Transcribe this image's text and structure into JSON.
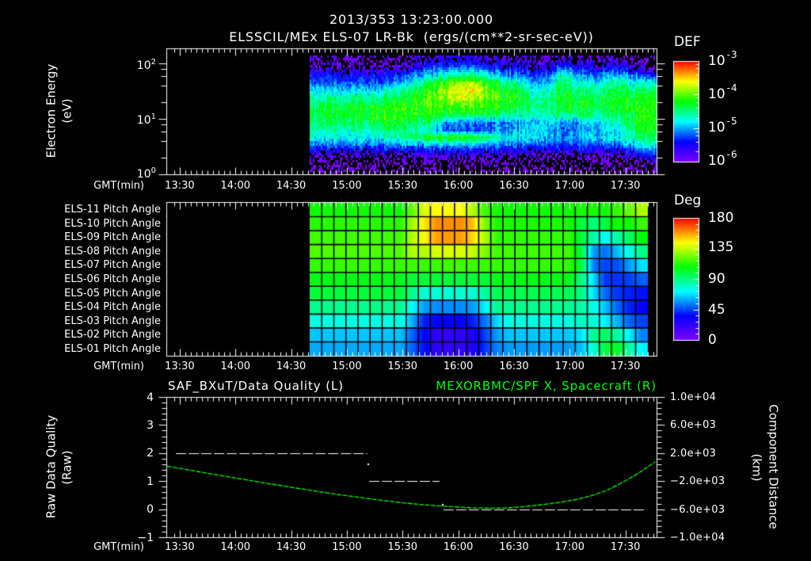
{
  "header": {
    "timestamp": "2013/353 13:23:00.000",
    "title": "ELSSCIL/MEx ELS-07 LR-Bk  (ergs/(cm**2-sr-sec-eV))"
  },
  "time_axis": {
    "label": "GMT(min)",
    "xlim": [
      "13:23",
      "17:47"
    ],
    "ticks": [
      "13:30",
      "14:00",
      "14:30",
      "15:00",
      "15:30",
      "16:00",
      "16:30",
      "17:00",
      "17:30"
    ]
  },
  "colors": {
    "background": "#000000",
    "foreground": "#ffffff",
    "pitch_grid": "#000000",
    "right_axis_series": "#00ff00"
  },
  "colormap": {
    "stops": [
      [
        0,
        "#7f00ff"
      ],
      [
        0.2,
        "#0000ff"
      ],
      [
        0.3,
        "#0080ff"
      ],
      [
        0.4,
        "#00ffff"
      ],
      [
        0.5,
        "#00ff80"
      ],
      [
        0.6,
        "#00ff00"
      ],
      [
        0.8,
        "#ffff00"
      ],
      [
        0.9,
        "#ff8000"
      ],
      [
        1,
        "#ff0000"
      ]
    ]
  },
  "chart_data": [
    {
      "type": "heatmap",
      "title": "ELSSCIL/MEx ELS-07 LR-Bk  (ergs/(cm**2-sr-sec-eV))",
      "subtitle": "2013/353 13:23:00.000",
      "xlabel": "GMT(min)",
      "ylabel": "Electron Energy",
      "yunits": "(eV)",
      "yscale": "log",
      "ylim": [
        1,
        188
      ],
      "yticks": [
        {
          "base": "10",
          "exp": "2",
          "value": 100
        },
        {
          "base": "10",
          "exp": "1",
          "value": 10
        },
        {
          "base": "10",
          "exp": "0",
          "value": 1
        }
      ],
      "xlim": [
        "13:23",
        "17:47"
      ],
      "xticks": [
        "13:30",
        "14:00",
        "14:30",
        "15:00",
        "15:30",
        "16:00",
        "16:30",
        "17:00",
        "17:30"
      ],
      "colorbar": {
        "label": "DEF",
        "scale": "log",
        "range": [
          1e-06,
          0.001
        ],
        "ticks": [
          {
            "base": "10",
            "exp": "-3"
          },
          {
            "base": "10",
            "exp": "-4"
          },
          {
            "base": "10",
            "exp": "-5"
          },
          {
            "base": "10",
            "exp": "-6"
          }
        ]
      },
      "data_time_range": [
        "14:40",
        "17:47"
      ],
      "time_bins": [
        "14:44",
        "14:52",
        "14:59",
        "15:07",
        "15:15",
        "15:23",
        "15:31",
        "15:38",
        "15:46",
        "15:54",
        "16:02",
        "16:10",
        "16:17",
        "16:25",
        "16:33",
        "16:41",
        "16:49",
        "16:56",
        "17:04",
        "17:12",
        "17:20",
        "17:28",
        "17:35",
        "17:43"
      ],
      "energy_bins_eV": [
        122,
        88,
        63,
        47,
        34,
        24,
        17.3,
        12.4,
        8.9,
        6.4,
        4.6,
        3.4,
        2.4,
        1.76,
        1.26
      ],
      "log10_def_by_time": [
        [
          -6.0,
          -5.9,
          -5.45,
          -5.2,
          -4.85,
          -4.6,
          -4.4,
          -4.35,
          -4.45,
          -4.6,
          -4.75,
          -5.15,
          -5.75,
          -6.0,
          -6.1
        ],
        [
          -6.0,
          -5.9,
          -5.45,
          -5.2,
          -4.85,
          -4.55,
          -4.3,
          -4.25,
          -4.35,
          -4.6,
          -4.75,
          -5.15,
          -5.75,
          -6.0,
          -6.1
        ],
        [
          -6.0,
          -5.9,
          -5.45,
          -5.2,
          -4.85,
          -4.55,
          -4.3,
          -4.25,
          -4.35,
          -4.6,
          -4.75,
          -5.15,
          -5.75,
          -6.0,
          -6.1
        ],
        [
          -6.0,
          -5.9,
          -5.45,
          -5.2,
          -4.85,
          -4.55,
          -4.25,
          -4.25,
          -4.35,
          -4.6,
          -4.75,
          -5.15,
          -5.75,
          -6.0,
          -6.1
        ],
        [
          -6.0,
          -5.9,
          -5.45,
          -5.2,
          -4.85,
          -4.55,
          -4.25,
          -4.2,
          -4.25,
          -4.6,
          -4.75,
          -5.15,
          -5.75,
          -6.0,
          -6.1
        ],
        [
          -6.0,
          -5.9,
          -5.45,
          -5.2,
          -4.7,
          -4.4,
          -4.2,
          -4.15,
          -4.2,
          -4.45,
          -4.7,
          -5.15,
          -5.75,
          -6.0,
          -6.1
        ],
        [
          -6.0,
          -5.9,
          -5.25,
          -4.9,
          -4.55,
          -4.25,
          -4.15,
          -4.15,
          -4.25,
          -4.45,
          -4.6,
          -5.05,
          -5.75,
          -6.0,
          -6.1
        ],
        [
          -5.8,
          -5.45,
          -5.05,
          -4.6,
          -4.25,
          -4.1,
          -4.1,
          -4.15,
          -4.35,
          -4.6,
          -4.35,
          -5.05,
          -5.65,
          -6.0,
          -6.1
        ],
        [
          -5.8,
          -5.35,
          -4.9,
          -4.35,
          -4.1,
          -4.05,
          -4.1,
          -4.2,
          -4.55,
          -4.9,
          -4.25,
          -5.05,
          -5.65,
          -6.0,
          -6.1
        ],
        [
          -5.65,
          -5.25,
          -4.7,
          -4.0,
          -3.75,
          -3.85,
          -4.1,
          -4.25,
          -5.05,
          -5.2,
          -4.2,
          -5.05,
          -5.65,
          -6.0,
          -6.1
        ],
        [
          -5.65,
          -5.25,
          -4.6,
          -3.85,
          -3.6,
          -3.75,
          -4.1,
          -4.3,
          -5.15,
          -5.25,
          -4.2,
          -5.05,
          -5.65,
          -6.0,
          -6.1
        ],
        [
          -5.65,
          -5.25,
          -4.6,
          -3.9,
          -3.65,
          -3.8,
          -4.1,
          -4.3,
          -5.15,
          -5.25,
          -4.25,
          -5.05,
          -5.65,
          -6.0,
          -6.1
        ],
        [
          -5.75,
          -5.35,
          -4.8,
          -4.25,
          -4.0,
          -4.0,
          -4.1,
          -4.3,
          -5.05,
          -5.15,
          -4.45,
          -5.1,
          -5.65,
          -6.0,
          -6.1
        ],
        [
          -5.8,
          -5.45,
          -5.05,
          -4.45,
          -4.2,
          -4.15,
          -4.2,
          -4.45,
          -5.0,
          -5.1,
          -4.7,
          -5.15,
          -5.7,
          -6.0,
          -6.1
        ],
        [
          -5.8,
          -5.55,
          -5.15,
          -4.7,
          -4.35,
          -4.25,
          -4.35,
          -4.6,
          -5.05,
          -5.05,
          -4.8,
          -5.25,
          -5.75,
          -6.0,
          -6.1
        ],
        [
          -5.9,
          -5.65,
          -5.25,
          -5.0,
          -4.7,
          -4.55,
          -4.5,
          -4.6,
          -4.9,
          -4.8,
          -4.8,
          -5.25,
          -5.75,
          -6.0,
          -6.1
        ],
        [
          -5.9,
          -5.65,
          -5.25,
          -4.9,
          -4.6,
          -4.45,
          -4.4,
          -4.55,
          -4.8,
          -4.9,
          -4.9,
          -5.25,
          -5.75,
          -6.0,
          -6.1
        ],
        [
          -5.8,
          -5.15,
          -4.6,
          -4.35,
          -4.25,
          -4.2,
          -4.25,
          -4.45,
          -5.0,
          -5.15,
          -5.0,
          -5.25,
          -5.75,
          -6.0,
          -6.1
        ],
        [
          -5.9,
          -5.45,
          -5.05,
          -4.7,
          -4.45,
          -4.3,
          -4.25,
          -4.45,
          -5.0,
          -5.1,
          -5.0,
          -5.25,
          -5.75,
          -6.0,
          -6.1
        ],
        [
          -5.9,
          -5.55,
          -5.15,
          -4.8,
          -4.55,
          -4.35,
          -4.3,
          -4.45,
          -4.8,
          -5.0,
          -4.8,
          -5.25,
          -5.75,
          -6.0,
          -6.1
        ],
        [
          -5.9,
          -5.45,
          -5.05,
          -4.65,
          -4.45,
          -4.3,
          -4.25,
          -4.4,
          -4.7,
          -4.9,
          -4.8,
          -5.2,
          -5.75,
          -6.0,
          -6.1
        ],
        [
          -6.0,
          -5.45,
          -5.0,
          -4.55,
          -4.35,
          -4.25,
          -4.25,
          -4.35,
          -4.6,
          -4.8,
          -4.8,
          -5.15,
          -5.75,
          -6.0,
          -6.1
        ],
        [
          -6.05,
          -5.75,
          -5.25,
          -4.8,
          -4.45,
          -4.3,
          -4.2,
          -4.2,
          -4.25,
          -4.35,
          -4.55,
          -4.9,
          -5.45,
          -6.0,
          -6.1
        ],
        [
          -6.1,
          -6.0,
          -5.35,
          -4.7,
          -4.35,
          -4.15,
          -4.1,
          -4.1,
          -4.1,
          -4.2,
          -4.35,
          -4.7,
          -5.25,
          -5.8,
          -6.05
        ]
      ]
    },
    {
      "type": "heatmap",
      "xlabel": "GMT(min)",
      "xlim": [
        "13:23",
        "17:47"
      ],
      "xticks": [
        "13:30",
        "14:00",
        "14:30",
        "15:00",
        "15:30",
        "16:00",
        "16:30",
        "17:00",
        "17:30"
      ],
      "row_labels": [
        "ELS-11 Pitch Angle",
        "ELS-10 Pitch Angle",
        "ELS-09 Pitch Angle",
        "ELS-08 Pitch Angle",
        "ELS-07 Pitch Angle",
        "ELS-06 Pitch Angle",
        "ELS-05 Pitch Angle",
        "ELS-04 Pitch Angle",
        "ELS-03 Pitch Angle",
        "ELS-02 Pitch Angle",
        "ELS-01 Pitch Angle"
      ],
      "colorbar": {
        "label": "Deg",
        "range": [
          0,
          180
        ],
        "ticks": [
          "180",
          "135",
          "90",
          "45",
          "0"
        ]
      },
      "data_time_range": [
        "14:40",
        "17:42"
      ],
      "pitch_angle_deg": [
        [
          110,
          110,
          110,
          110,
          110,
          110,
          110,
          110,
          122,
          140,
          144,
          144,
          144,
          133,
          117,
          110,
          110,
          110,
          110,
          110,
          110,
          110,
          111,
          111,
          110,
          115,
          122,
          133
        ],
        [
          113,
          113,
          113,
          113,
          113,
          113,
          113,
          113,
          130,
          147,
          160,
          160,
          160,
          153,
          126,
          111,
          111,
          111,
          111,
          111,
          111,
          111,
          100,
          90,
          100,
          111,
          110,
          116
        ],
        [
          117,
          117,
          117,
          117,
          117,
          117,
          117,
          117,
          133,
          144,
          158,
          158,
          158,
          150,
          133,
          115,
          115,
          115,
          115,
          115,
          115,
          115,
          100,
          85,
          72,
          85,
          95,
          108
        ],
        [
          119,
          119,
          119,
          119,
          119,
          119,
          119,
          119,
          133,
          133,
          139,
          139,
          139,
          136,
          126,
          117,
          117,
          117,
          117,
          117,
          117,
          117,
          100,
          58,
          52,
          63,
          76,
          90
        ],
        [
          115,
          115,
          115,
          115,
          115,
          115,
          115,
          115,
          116,
          116,
          116,
          116,
          116,
          116,
          116,
          115,
          115,
          115,
          115,
          115,
          115,
          115,
          100,
          54,
          45,
          47,
          58,
          68
        ],
        [
          105,
          105,
          105,
          105,
          105,
          105,
          105,
          105,
          100,
          100,
          100,
          100,
          100,
          100,
          100,
          105,
          105,
          105,
          105,
          105,
          105,
          105,
          90,
          68,
          43,
          43,
          45,
          50
        ],
        [
          100,
          100,
          100,
          100,
          100,
          100,
          100,
          100,
          88,
          78,
          78,
          78,
          78,
          78,
          85,
          97,
          97,
          97,
          97,
          97,
          97,
          97,
          90,
          68,
          50,
          43,
          40,
          38
        ],
        [
          88,
          88,
          88,
          88,
          88,
          88,
          88,
          88,
          72,
          58,
          56,
          56,
          56,
          58,
          70,
          88,
          88,
          88,
          88,
          88,
          88,
          88,
          85,
          76,
          63,
          50,
          40,
          36
        ],
        [
          76,
          76,
          76,
          76,
          76,
          76,
          76,
          76,
          61,
          40,
          36,
          36,
          36,
          40,
          52,
          66,
          76,
          76,
          76,
          76,
          76,
          76,
          81,
          78,
          70,
          61,
          50,
          45
        ],
        [
          64,
          64,
          64,
          64,
          64,
          64,
          64,
          64,
          50,
          36,
          22,
          22,
          22,
          27,
          45,
          58,
          64,
          64,
          64,
          64,
          64,
          64,
          68,
          88,
          95,
          85,
          70,
          54
        ],
        [
          60,
          60,
          60,
          60,
          60,
          60,
          60,
          60,
          50,
          38,
          22,
          22,
          22,
          27,
          43,
          54,
          58,
          58,
          58,
          58,
          58,
          58,
          63,
          78,
          100,
          103,
          85,
          70
        ]
      ]
    },
    {
      "type": "line",
      "title_left": "SAF_BXuT/Data Quality (L)",
      "title_right": "MEXORBMC/SPF X, Spacecraft (R)",
      "xlabel": "GMT(min)",
      "xlim": [
        "13:23",
        "17:47"
      ],
      "xticks": [
        "13:30",
        "14:00",
        "14:30",
        "15:00",
        "15:30",
        "16:00",
        "16:30",
        "17:00",
        "17:30"
      ],
      "ylabel_left": "Raw Data Quality",
      "yunits_left": "(Raw)",
      "ylim_left": [
        -1,
        4
      ],
      "yticks_left": [
        "4",
        "3",
        "2",
        "1",
        "0",
        "−1"
      ],
      "ylabel_right": "Component Distance",
      "yunits_right": "(km)",
      "ylim_right": [
        -10000,
        10000
      ],
      "yticks_right": [
        "1.0e+04",
        "6.0e+03",
        "2.0e+03",
        "−2.0e+03",
        "−6.0e+03",
        "−1.0e+04"
      ],
      "series": [
        {
          "name": "Data Quality",
          "axis": "left",
          "color": "#ffffff",
          "segments": [
            {
              "start": "13:28",
              "end": "15:11",
              "value": 2
            },
            {
              "start": "15:12",
              "end": "15:50",
              "value": 1
            },
            {
              "start": "15:52",
              "end": "17:41",
              "value": 0
            }
          ],
          "points": [
            {
              "time": "15:11",
              "value": 1.65
            },
            {
              "time": "15:51",
              "value": 0.2
            }
          ]
        },
        {
          "name": "MEXORBMC/SPF X, Spacecraft",
          "axis": "right",
          "color": "#00ff00",
          "x": [
            "13:23",
            "13:53",
            "14:27",
            "15:01",
            "15:35",
            "15:51",
            "16:10",
            "16:27",
            "16:44",
            "17:01",
            "17:18",
            "17:35",
            "17:46"
          ],
          "values": [
            200,
            -1200,
            -2700,
            -4100,
            -5200,
            -5500,
            -5800,
            -5800,
            -5350,
            -4750,
            -3600,
            -1200,
            800
          ]
        }
      ]
    }
  ]
}
